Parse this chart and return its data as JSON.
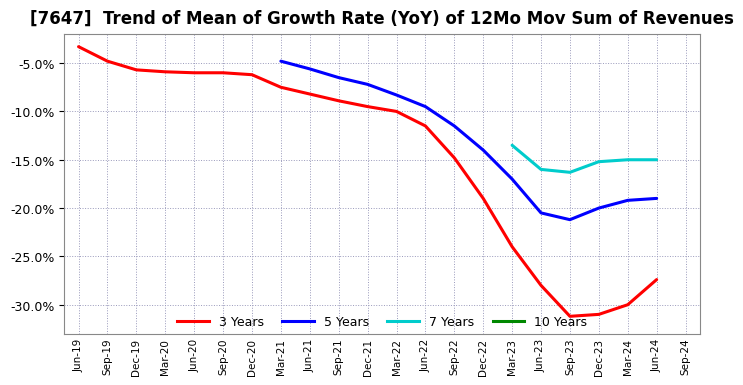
{
  "title": "[7647]  Trend of Mean of Growth Rate (YoY) of 12Mo Mov Sum of Revenues",
  "title_fontsize": 12,
  "background_color": "#ffffff",
  "plot_bg_color": "#ffffff",
  "grid_color": "#aaaaaa",
  "ylim": [
    -0.33,
    -0.02
  ],
  "yticks": [
    -0.05,
    -0.1,
    -0.15,
    -0.2,
    -0.25,
    -0.3
  ],
  "xtick_labels": [
    "Jun-19",
    "Sep-19",
    "Dec-19",
    "Mar-20",
    "Jun-20",
    "Sep-20",
    "Dec-20",
    "Mar-21",
    "Jun-21",
    "Sep-21",
    "Dec-21",
    "Mar-22",
    "Jun-22",
    "Sep-22",
    "Dec-22",
    "Mar-23",
    "Jun-23",
    "Sep-23",
    "Dec-23",
    "Mar-24",
    "Jun-24",
    "Sep-24"
  ],
  "series": [
    {
      "name": "3 Years",
      "color": "#ff0000",
      "linewidth": 2.2,
      "xi": [
        0,
        1,
        2,
        3,
        4,
        5,
        6,
        7,
        8,
        9,
        10,
        11,
        12,
        13,
        14,
        15,
        16,
        17,
        18,
        19,
        20
      ],
      "y": [
        -0.033,
        -0.048,
        -0.057,
        -0.059,
        -0.06,
        -0.06,
        -0.062,
        -0.075,
        -0.082,
        -0.089,
        -0.095,
        -0.1,
        -0.115,
        -0.148,
        -0.19,
        -0.24,
        -0.28,
        -0.312,
        -0.31,
        -0.3,
        -0.274
      ]
    },
    {
      "name": "5 Years",
      "color": "#0000ff",
      "linewidth": 2.2,
      "xi": [
        7,
        8,
        9,
        10,
        11,
        12,
        13,
        14,
        15,
        16,
        17,
        18,
        19,
        20
      ],
      "y": [
        -0.048,
        -0.056,
        -0.065,
        -0.072,
        -0.083,
        -0.095,
        -0.115,
        -0.14,
        -0.17,
        -0.205,
        -0.212,
        -0.2,
        -0.192,
        -0.19
      ]
    },
    {
      "name": "7 Years",
      "color": "#00cccc",
      "linewidth": 2.2,
      "xi": [
        15,
        16,
        17,
        18,
        19,
        20
      ],
      "y": [
        -0.135,
        -0.16,
        -0.163,
        -0.152,
        -0.15,
        -0.15
      ]
    },
    {
      "name": "10 Years",
      "color": "#008800",
      "linewidth": 2.2,
      "xi": [],
      "y": []
    }
  ],
  "legend_labels": [
    "3 Years",
    "5 Years",
    "7 Years",
    "10 Years"
  ],
  "legend_colors": [
    "#ff0000",
    "#0000ff",
    "#00cccc",
    "#008800"
  ]
}
